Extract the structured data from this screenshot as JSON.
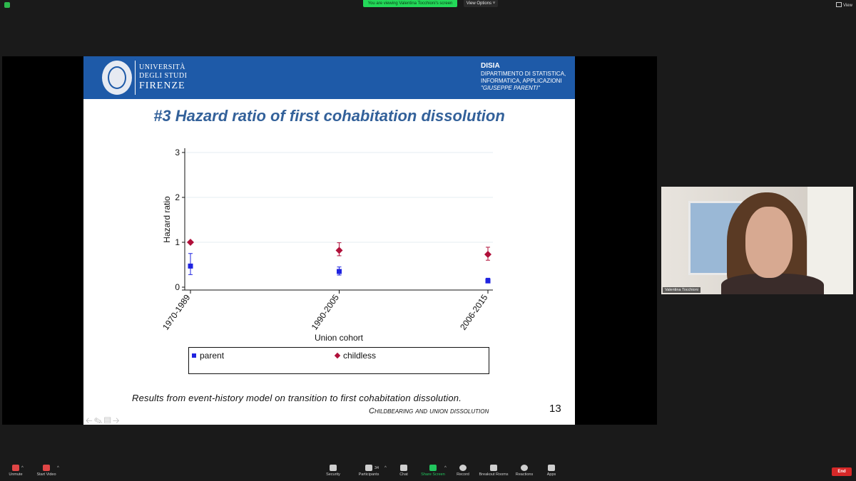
{
  "top": {
    "banner": "You are viewing Valentina Tocchioni's screen",
    "view_options": "View Options ˅",
    "view": "View"
  },
  "slide": {
    "university": {
      "line1": "UNIVERSITÀ",
      "line2": "DEGLI STUDI",
      "line3": "FIRENZE"
    },
    "dept": {
      "title": "DISIA",
      "line1": "DIPARTIMENTO DI STATISTICA,",
      "line2": "INFORMATICA, APPLICAZIONI",
      "line3": "\"GIUSEPPE PARENTI\""
    },
    "title": "#3 Hazard ratio of first cohabitation dissolution",
    "caption": "Results from event-history model on transition to first cohabitation dissolution.",
    "footer_title": "Childbearing and union dissolution",
    "page_number": "13",
    "nav_icons": [
      "arrow-left-icon",
      "pen-icon",
      "slides-icon",
      "arrow-right-icon"
    ]
  },
  "chart_data": {
    "type": "scatter",
    "categories": [
      "1970-1989",
      "1990-2005",
      "2006-2015"
    ],
    "xlabel": "Union cohort",
    "ylabel": "Hazard ratio",
    "ylim": [
      0,
      3
    ],
    "yticks": [
      0,
      1,
      2,
      3
    ],
    "grid": true,
    "legend_position": "bottom",
    "series": [
      {
        "name": "parent",
        "marker": "square",
        "color": "#1f23e0",
        "values": [
          0.47,
          0.35,
          0.14
        ],
        "ci_low": [
          0.28,
          0.27,
          0.1
        ],
        "ci_high": [
          0.75,
          0.45,
          0.2
        ]
      },
      {
        "name": "childless",
        "marker": "diamond",
        "color": "#b0103a",
        "values": [
          1.0,
          0.82,
          0.73
        ],
        "ci_low": [
          null,
          0.7,
          0.6
        ],
        "ci_high": [
          null,
          0.99,
          0.89
        ]
      }
    ]
  },
  "video": {
    "name": "Valentina Tocchioni"
  },
  "toolbar": {
    "unmute": "Unmute",
    "start_video": "Start Video",
    "security": "Security",
    "participants": "Participants",
    "participants_count": "34",
    "chat": "Chat",
    "share_screen": "Share Screen",
    "record": "Record",
    "breakout_rooms": "Breakout Rooms",
    "reactions": "Reactions",
    "apps": "Apps",
    "end": "End"
  }
}
